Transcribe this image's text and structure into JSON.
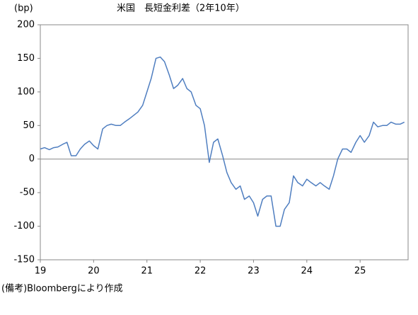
{
  "chart_data": {
    "type": "line",
    "title": "米国　長短金利差（2年10年）",
    "y_label": "(bp)",
    "note": "(備考)Bloombergにより作成",
    "x": [
      2019.0,
      2019.08,
      2019.17,
      2019.25,
      2019.33,
      2019.42,
      2019.5,
      2019.58,
      2019.67,
      2019.75,
      2019.83,
      2019.92,
      2020.0,
      2020.08,
      2020.17,
      2020.25,
      2020.33,
      2020.42,
      2020.5,
      2020.58,
      2020.67,
      2020.75,
      2020.83,
      2020.92,
      2021.0,
      2021.08,
      2021.17,
      2021.25,
      2021.33,
      2021.42,
      2021.5,
      2021.58,
      2021.67,
      2021.75,
      2021.83,
      2021.92,
      2022.0,
      2022.08,
      2022.17,
      2022.25,
      2022.33,
      2022.42,
      2022.5,
      2022.58,
      2022.67,
      2022.75,
      2022.83,
      2022.92,
      2023.0,
      2023.08,
      2023.17,
      2023.25,
      2023.33,
      2023.42,
      2023.5,
      2023.58,
      2023.67,
      2023.75,
      2023.83,
      2023.92,
      2024.0,
      2024.08,
      2024.17,
      2024.25,
      2024.33,
      2024.42,
      2024.5,
      2024.58,
      2024.67,
      2024.75,
      2024.83,
      2024.92,
      2025.0,
      2025.08,
      2025.17,
      2025.25,
      2025.33,
      2025.42,
      2025.5,
      2025.58,
      2025.67,
      2025.75,
      2025.83
    ],
    "values": [
      15,
      17,
      14,
      17,
      18,
      22,
      25,
      5,
      5,
      15,
      22,
      27,
      20,
      15,
      45,
      50,
      52,
      50,
      50,
      55,
      60,
      65,
      70,
      80,
      100,
      120,
      150,
      152,
      145,
      125,
      105,
      110,
      120,
      105,
      100,
      80,
      75,
      50,
      -5,
      25,
      30,
      5,
      -20,
      -35,
      -45,
      -40,
      -60,
      -55,
      -65,
      -85,
      -60,
      -55,
      -55,
      -100,
      -100,
      -75,
      -65,
      -25,
      -35,
      -40,
      -30,
      -35,
      -40,
      -35,
      -40,
      -45,
      -25,
      0,
      15,
      15,
      10,
      25,
      35,
      25,
      35,
      55,
      48,
      50,
      50,
      55,
      52,
      52,
      55
    ],
    "color": "#4f7ec0",
    "xlim": [
      2019.0,
      2025.9
    ],
    "xticks": [
      {
        "value": 2019,
        "label": "19"
      },
      {
        "value": 2020,
        "label": "20"
      },
      {
        "value": 2021,
        "label": "21"
      },
      {
        "value": 2022,
        "label": "22"
      },
      {
        "value": 2023,
        "label": "23"
      },
      {
        "value": 2024,
        "label": "24"
      },
      {
        "value": 2025,
        "label": "25"
      }
    ],
    "ylim": [
      -150,
      200
    ],
    "yticks": [
      -150,
      -100,
      -50,
      0,
      50,
      100,
      150,
      200
    ],
    "zero_line": true
  }
}
